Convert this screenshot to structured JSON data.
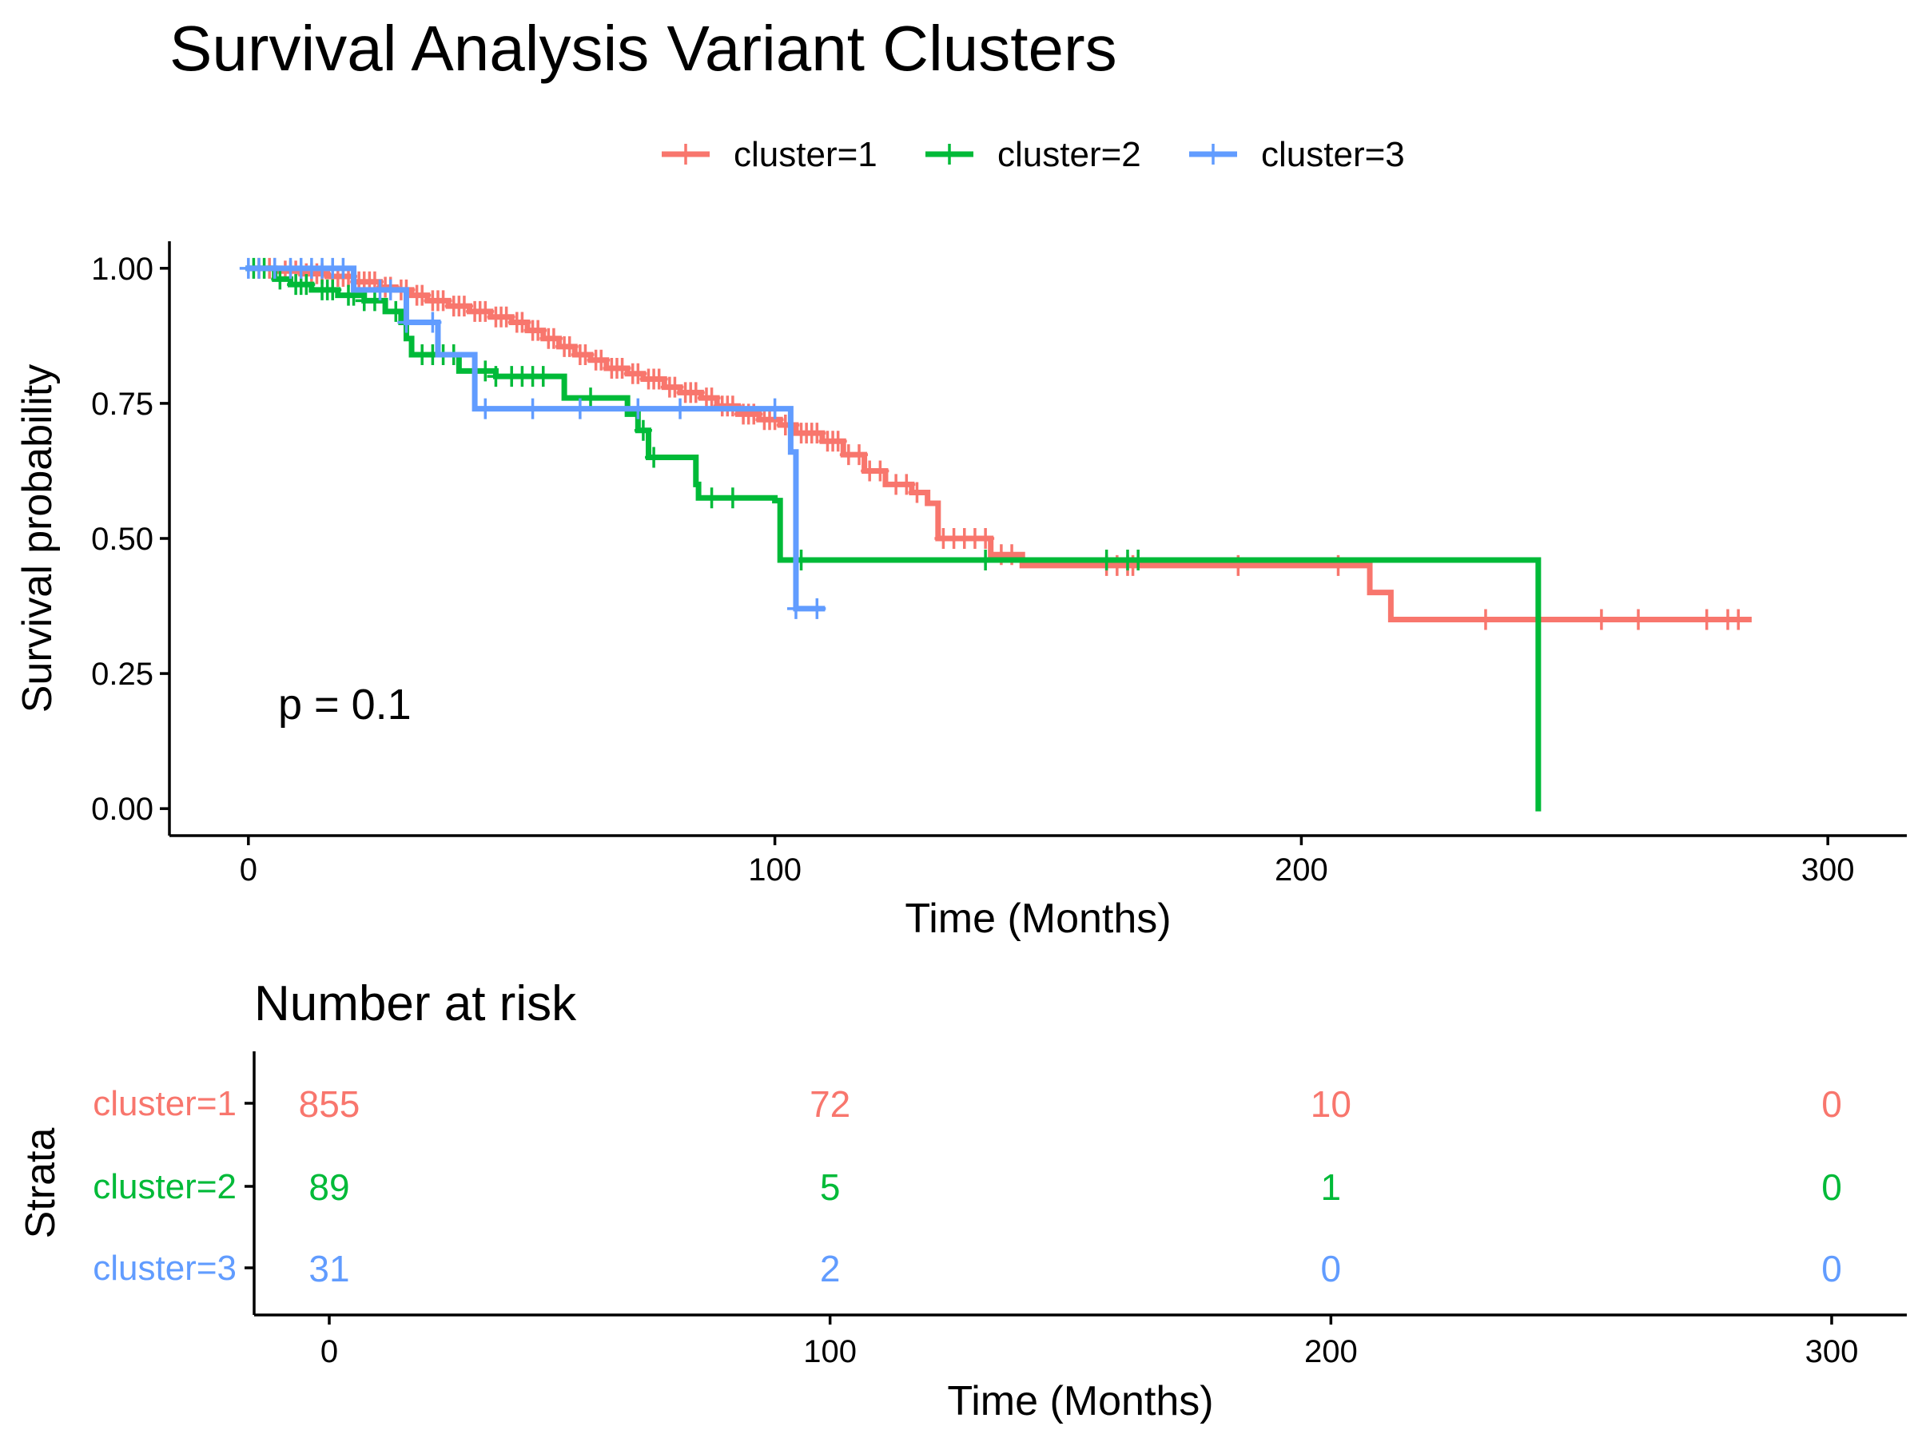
{
  "chart_data": [
    {
      "type": "line",
      "subtype": "kaplan-meier",
      "title": "Survival Analysis Variant Clusters",
      "xlabel": "Time (Months)",
      "ylabel": "Survival probability",
      "xlim": [
        -15,
        315
      ],
      "ylim": [
        -0.05,
        1.05
      ],
      "x_ticks": [
        0,
        100,
        200,
        300
      ],
      "x_tick_labels": [
        "0",
        "100",
        "200",
        "300"
      ],
      "y_ticks": [
        0,
        0.25,
        0.5,
        0.75,
        1.0
      ],
      "y_tick_labels": [
        "0.00",
        "0.25",
        "0.50",
        "0.75",
        "1.00"
      ],
      "grid": false,
      "legend_position": "top",
      "annotation": "p = 0.1",
      "series": [
        {
          "name": "cluster=1",
          "color": "#F8766D",
          "steps": [
            [
              0,
              1.0
            ],
            [
              6,
              0.995
            ],
            [
              10,
              0.99
            ],
            [
              15,
              0.985
            ],
            [
              20,
              0.975
            ],
            [
              25,
              0.965
            ],
            [
              28,
              0.96
            ],
            [
              31,
              0.95
            ],
            [
              34,
              0.94
            ],
            [
              38,
              0.93
            ],
            [
              42,
              0.92
            ],
            [
              46,
              0.91
            ],
            [
              50,
              0.9
            ],
            [
              53,
              0.885
            ],
            [
              56,
              0.87
            ],
            [
              59,
              0.855
            ],
            [
              62,
              0.84
            ],
            [
              65,
              0.83
            ],
            [
              68,
              0.815
            ],
            [
              72,
              0.805
            ],
            [
              75,
              0.795
            ],
            [
              79,
              0.78
            ],
            [
              82,
              0.77
            ],
            [
              86,
              0.76
            ],
            [
              89,
              0.745
            ],
            [
              93,
              0.73
            ],
            [
              97,
              0.72
            ],
            [
              101,
              0.71
            ],
            [
              104,
              0.695
            ],
            [
              109,
              0.68
            ],
            [
              113,
              0.655
            ],
            [
              117,
              0.625
            ],
            [
              121,
              0.6
            ],
            [
              126,
              0.585
            ],
            [
              129,
              0.565
            ],
            [
              131,
              0.5
            ],
            [
              141,
              0.47
            ],
            [
              147,
              0.45
            ],
            [
              213,
              0.4
            ],
            [
              217,
              0.35
            ],
            [
              285,
              0.35
            ]
          ],
          "censor_times": [
            2,
            4,
            5,
            7,
            8,
            9,
            11,
            12,
            13,
            14,
            16,
            17,
            18,
            19,
            21,
            22,
            23,
            24,
            26,
            27,
            29,
            30,
            32,
            33,
            35,
            36,
            37,
            39,
            40,
            41,
            43,
            44,
            45,
            47,
            48,
            49,
            51,
            52,
            54,
            55,
            57,
            58,
            60,
            61,
            63,
            64,
            66,
            67,
            69,
            70,
            71,
            73,
            74,
            76,
            77,
            78,
            80,
            81,
            83,
            84,
            85,
            87,
            88,
            90,
            91,
            92,
            94,
            95,
            96,
            98,
            99,
            100,
            102,
            103,
            105,
            106,
            107,
            108,
            110,
            111,
            112,
            114,
            116,
            118,
            120,
            123,
            125,
            127,
            132,
            134,
            136,
            138,
            140,
            143,
            145,
            163,
            165,
            167,
            168,
            188,
            207,
            235,
            257,
            264,
            277,
            281,
            283
          ]
        },
        {
          "name": "cluster=2",
          "color": "#00BA38",
          "steps": [
            [
              0,
              1.0
            ],
            [
              5,
              0.98
            ],
            [
              8,
              0.97
            ],
            [
              12,
              0.96
            ],
            [
              17,
              0.95
            ],
            [
              22,
              0.94
            ],
            [
              26,
              0.92
            ],
            [
              29,
              0.9
            ],
            [
              30,
              0.87
            ],
            [
              31,
              0.84
            ],
            [
              40,
              0.81
            ],
            [
              47,
              0.8
            ],
            [
              60,
              0.76
            ],
            [
              72,
              0.73
            ],
            [
              74,
              0.7
            ],
            [
              76,
              0.65
            ],
            [
              85,
              0.6
            ],
            [
              85.5,
              0.575
            ],
            [
              100,
              0.57
            ],
            [
              101,
              0.46
            ],
            [
              245,
              0.46
            ],
            [
              245,
              0.0
            ]
          ],
          "censor_times": [
            1,
            3,
            6,
            9,
            10,
            11,
            14,
            15,
            16,
            19,
            20,
            22,
            24,
            28,
            33,
            35,
            37,
            39,
            43,
            45,
            47,
            50,
            52,
            54,
            56,
            65,
            75,
            77,
            88,
            92,
            105,
            140,
            163,
            167,
            169
          ]
        },
        {
          "name": "cluster=3",
          "color": "#619CFF",
          "steps": [
            [
              0,
              1.0
            ],
            [
              20,
              0.96
            ],
            [
              30,
              0.9
            ],
            [
              36,
              0.84
            ],
            [
              43,
              0.74
            ],
            [
              103,
              0.66
            ],
            [
              104,
              0.37
            ],
            [
              109,
              0.37
            ]
          ],
          "censor_times": [
            0,
            2,
            5,
            8,
            10,
            12,
            14,
            16,
            18,
            25,
            27,
            30,
            35,
            45,
            54,
            63,
            74,
            82,
            100,
            104,
            108
          ]
        }
      ]
    },
    {
      "type": "table",
      "title": "Number at risk",
      "xlabel": "Time (Months)",
      "ylabel": "Strata",
      "x_ticks": [
        0,
        100,
        200,
        300
      ],
      "x_tick_labels": [
        "0",
        "100",
        "200",
        "300"
      ],
      "rows": [
        {
          "label": "cluster=1",
          "color": "#F8766D",
          "values": [
            "855",
            "72",
            "10",
            "0"
          ]
        },
        {
          "label": "cluster=2",
          "color": "#00BA38",
          "values": [
            "89",
            "5",
            "1",
            "0"
          ]
        },
        {
          "label": "cluster=3",
          "color": "#619CFF",
          "values": [
            "31",
            "2",
            "0",
            "0"
          ]
        }
      ]
    }
  ]
}
